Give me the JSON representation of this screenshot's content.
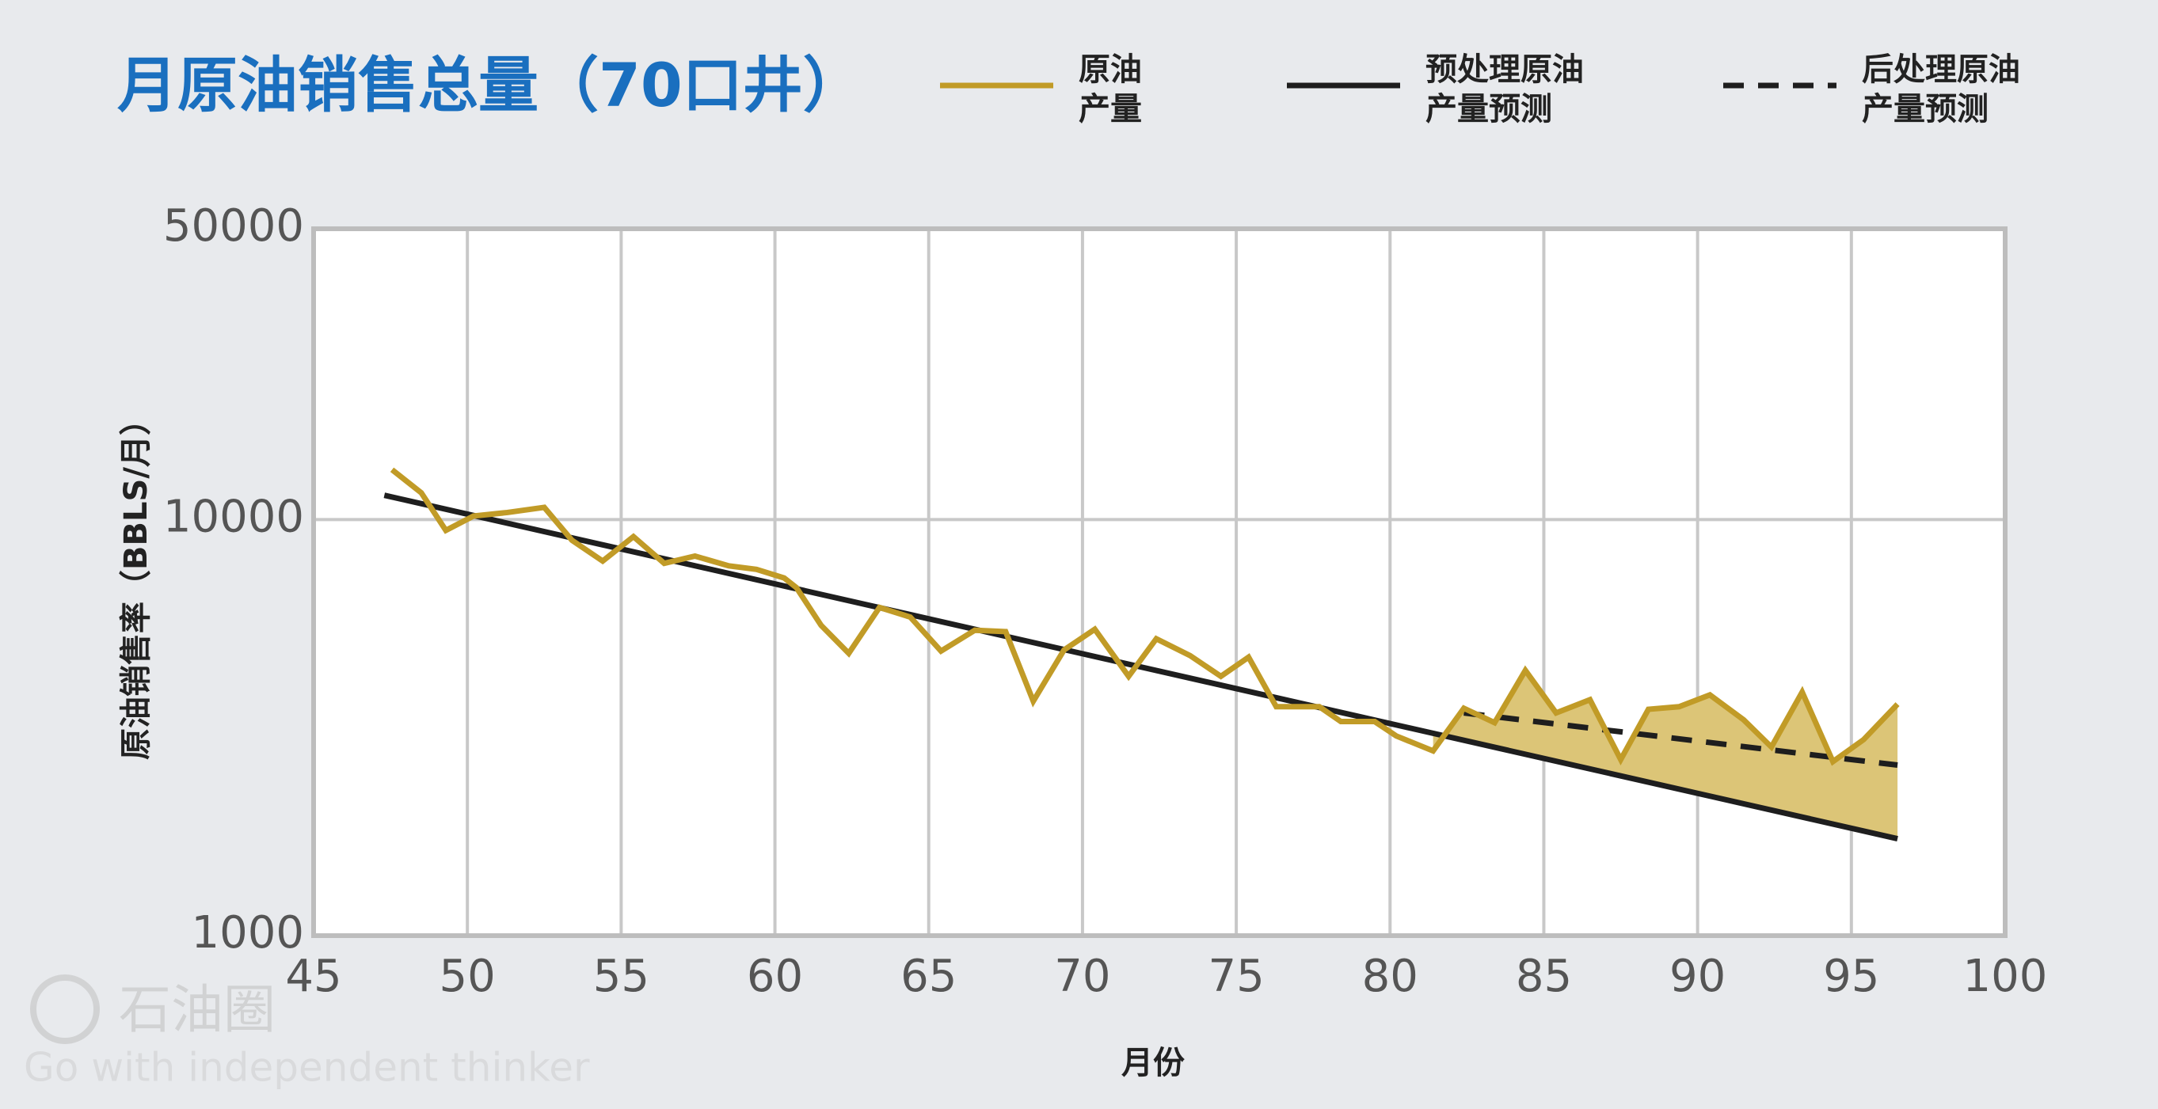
{
  "chart_data": {
    "type": "line",
    "title": "月原油销售总量（70口井）",
    "x_label": "月份",
    "y_label": "原油销售率（BBLS/月）",
    "xlim": [
      45,
      100
    ],
    "xticks": [
      45,
      50,
      55,
      60,
      65,
      70,
      75,
      80,
      85,
      90,
      95,
      100
    ],
    "ylim": [
      1000,
      50000
    ],
    "yticks": [
      1000,
      10000,
      50000
    ],
    "log_y": true,
    "grid": true,
    "legend": "top",
    "fill_between": {
      "color": "#dcc577",
      "from_x": 81.4
    },
    "series": [
      {
        "name": "原油\n产量",
        "color": "#c19b27",
        "dash": false,
        "x": [
          47.55,
          48.5,
          49.3,
          50.2,
          51.3,
          52.5,
          53.4,
          54.4,
          55.4,
          56.4,
          57.4,
          58.5,
          59.4,
          60.3,
          60.7,
          61.5,
          62.4,
          63.4,
          64.4,
          65.4,
          66.5,
          67.5,
          68.4,
          69.4,
          70.4,
          71.5,
          72.4,
          73.5,
          74.5,
          75.4,
          76.3,
          77.7,
          78.4,
          79.5,
          80.2,
          81.4,
          82.4,
          83.4,
          84.4,
          85.4,
          86.5,
          87.5,
          88.4,
          89.4,
          90.4,
          91.5,
          92.4,
          93.4,
          94.4,
          95.4,
          96.5
        ],
        "values": [
          13180,
          11600,
          9420,
          10200,
          10400,
          10700,
          8920,
          7950,
          9100,
          7850,
          8170,
          7740,
          7590,
          7240,
          6860,
          5570,
          4770,
          6150,
          5830,
          4830,
          5420,
          5380,
          3660,
          4860,
          5450,
          4200,
          5170,
          4710,
          4200,
          4670,
          3550,
          3550,
          3270,
          3270,
          3020,
          2780,
          3520,
          3250,
          4340,
          3430,
          3690,
          2650,
          3500,
          3550,
          3790,
          3300,
          2840,
          3850,
          2620,
          2960,
          3600
        ]
      },
      {
        "name": "预处理原油\n产量预测",
        "color": "#1e1e1e",
        "dash": false,
        "x": [
          47.3,
          96.5
        ],
        "values": [
          11440,
          1710
        ]
      },
      {
        "name": "后处理原油\n产量预测",
        "color": "#1e1e1e",
        "dash": true,
        "x": [
          82.4,
          96.5
        ],
        "values": [
          3430,
          2570
        ]
      }
    ]
  },
  "watermark": {
    "brand": "石油圈",
    "slogan": "Go with independent thinker"
  }
}
